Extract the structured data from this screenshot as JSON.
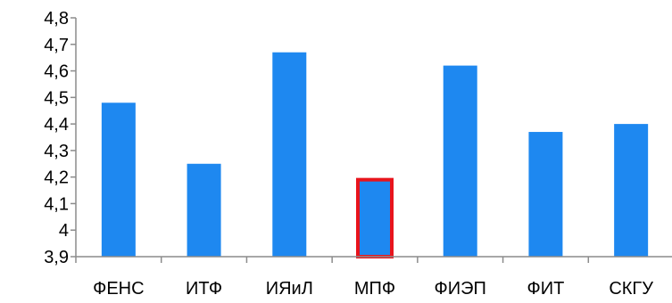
{
  "chart_data": {
    "type": "bar",
    "categories": [
      "ФЕНС",
      "ИТФ",
      "ИЯиЛ",
      "МПФ",
      "ФИЭП",
      "ФИТ",
      "СКГУ"
    ],
    "values": [
      4.48,
      4.25,
      4.67,
      4.19,
      4.62,
      4.37,
      4.4
    ],
    "ylim": [
      3.9,
      4.8
    ],
    "yticks": [
      3.9,
      4,
      4.1,
      4.2,
      4.3,
      4.4,
      4.5,
      4.6,
      4.7,
      4.8
    ],
    "ytick_labels": [
      "3,9",
      "4",
      "4,1",
      "4,2",
      "4,3",
      "4,4",
      "4,5",
      "4,6",
      "4,7",
      "4,8"
    ],
    "highlighted_category": "МПФ",
    "grid": false,
    "legend": "none",
    "colors": {
      "bar": "#1E88F0",
      "highlight_border": "#E8141C",
      "axis": "#8C8C8C"
    }
  }
}
